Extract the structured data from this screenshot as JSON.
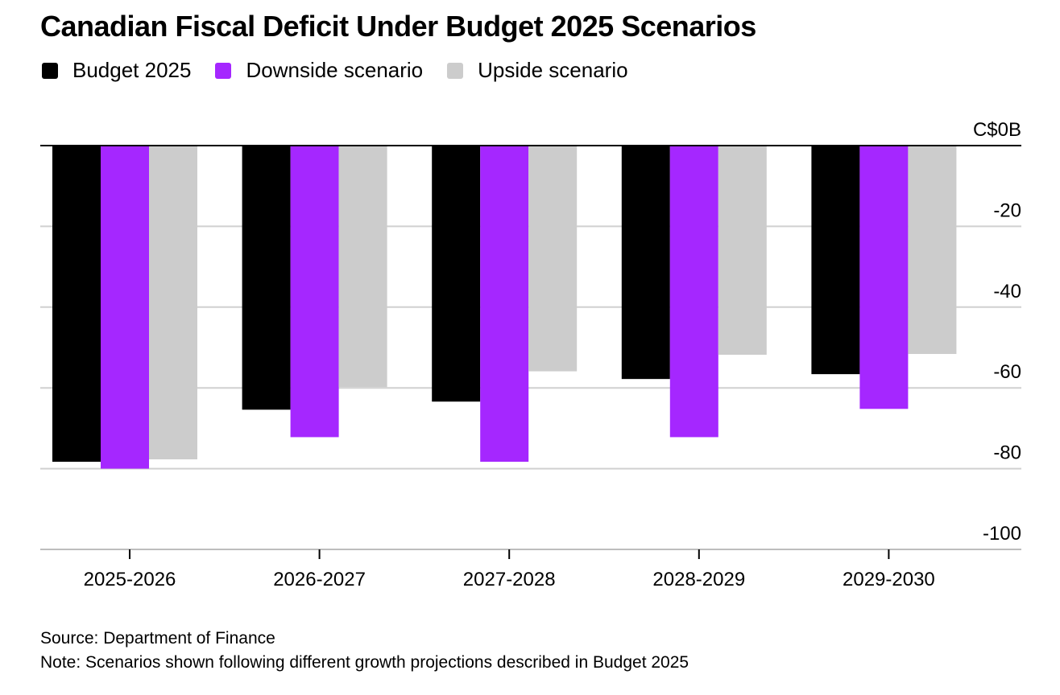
{
  "title": "Canadian Fiscal Deficit Under Budget 2025 Scenarios",
  "legend": [
    {
      "label": "Budget 2025",
      "color": "#000000"
    },
    {
      "label": "Downside scenario",
      "color": "#a527ff"
    },
    {
      "label": "Upside scenario",
      "color": "#cccccc"
    }
  ],
  "source": "Source: Department of Finance",
  "note": "Note: Scenarios shown following different growth projections described in Budget 2025",
  "chart_data": {
    "type": "bar",
    "categories": [
      "2025-2026",
      "2026-2027",
      "2027-2028",
      "2028-2029",
      "2029-2030"
    ],
    "series": [
      {
        "name": "Budget 2025",
        "color": "#000000",
        "values": [
          -78.3,
          -65.4,
          -63.4,
          -57.8,
          -56.6
        ]
      },
      {
        "name": "Downside scenario",
        "color": "#a527ff",
        "values": [
          -80.0,
          -72.2,
          -78.3,
          -72.2,
          -65.2
        ]
      },
      {
        "name": "Upside scenario",
        "color": "#cccccc",
        "values": [
          -77.7,
          -59.8,
          -55.9,
          -51.8,
          -51.6
        ]
      }
    ],
    "ylim": [
      -100,
      0
    ],
    "yticks": [
      0,
      -20,
      -40,
      -60,
      -80,
      -100
    ],
    "ytick_labels": [
      "C$0B",
      "-20",
      "-40",
      "-60",
      "-80",
      "-100"
    ],
    "grid": true,
    "legend_position": "top-left"
  }
}
